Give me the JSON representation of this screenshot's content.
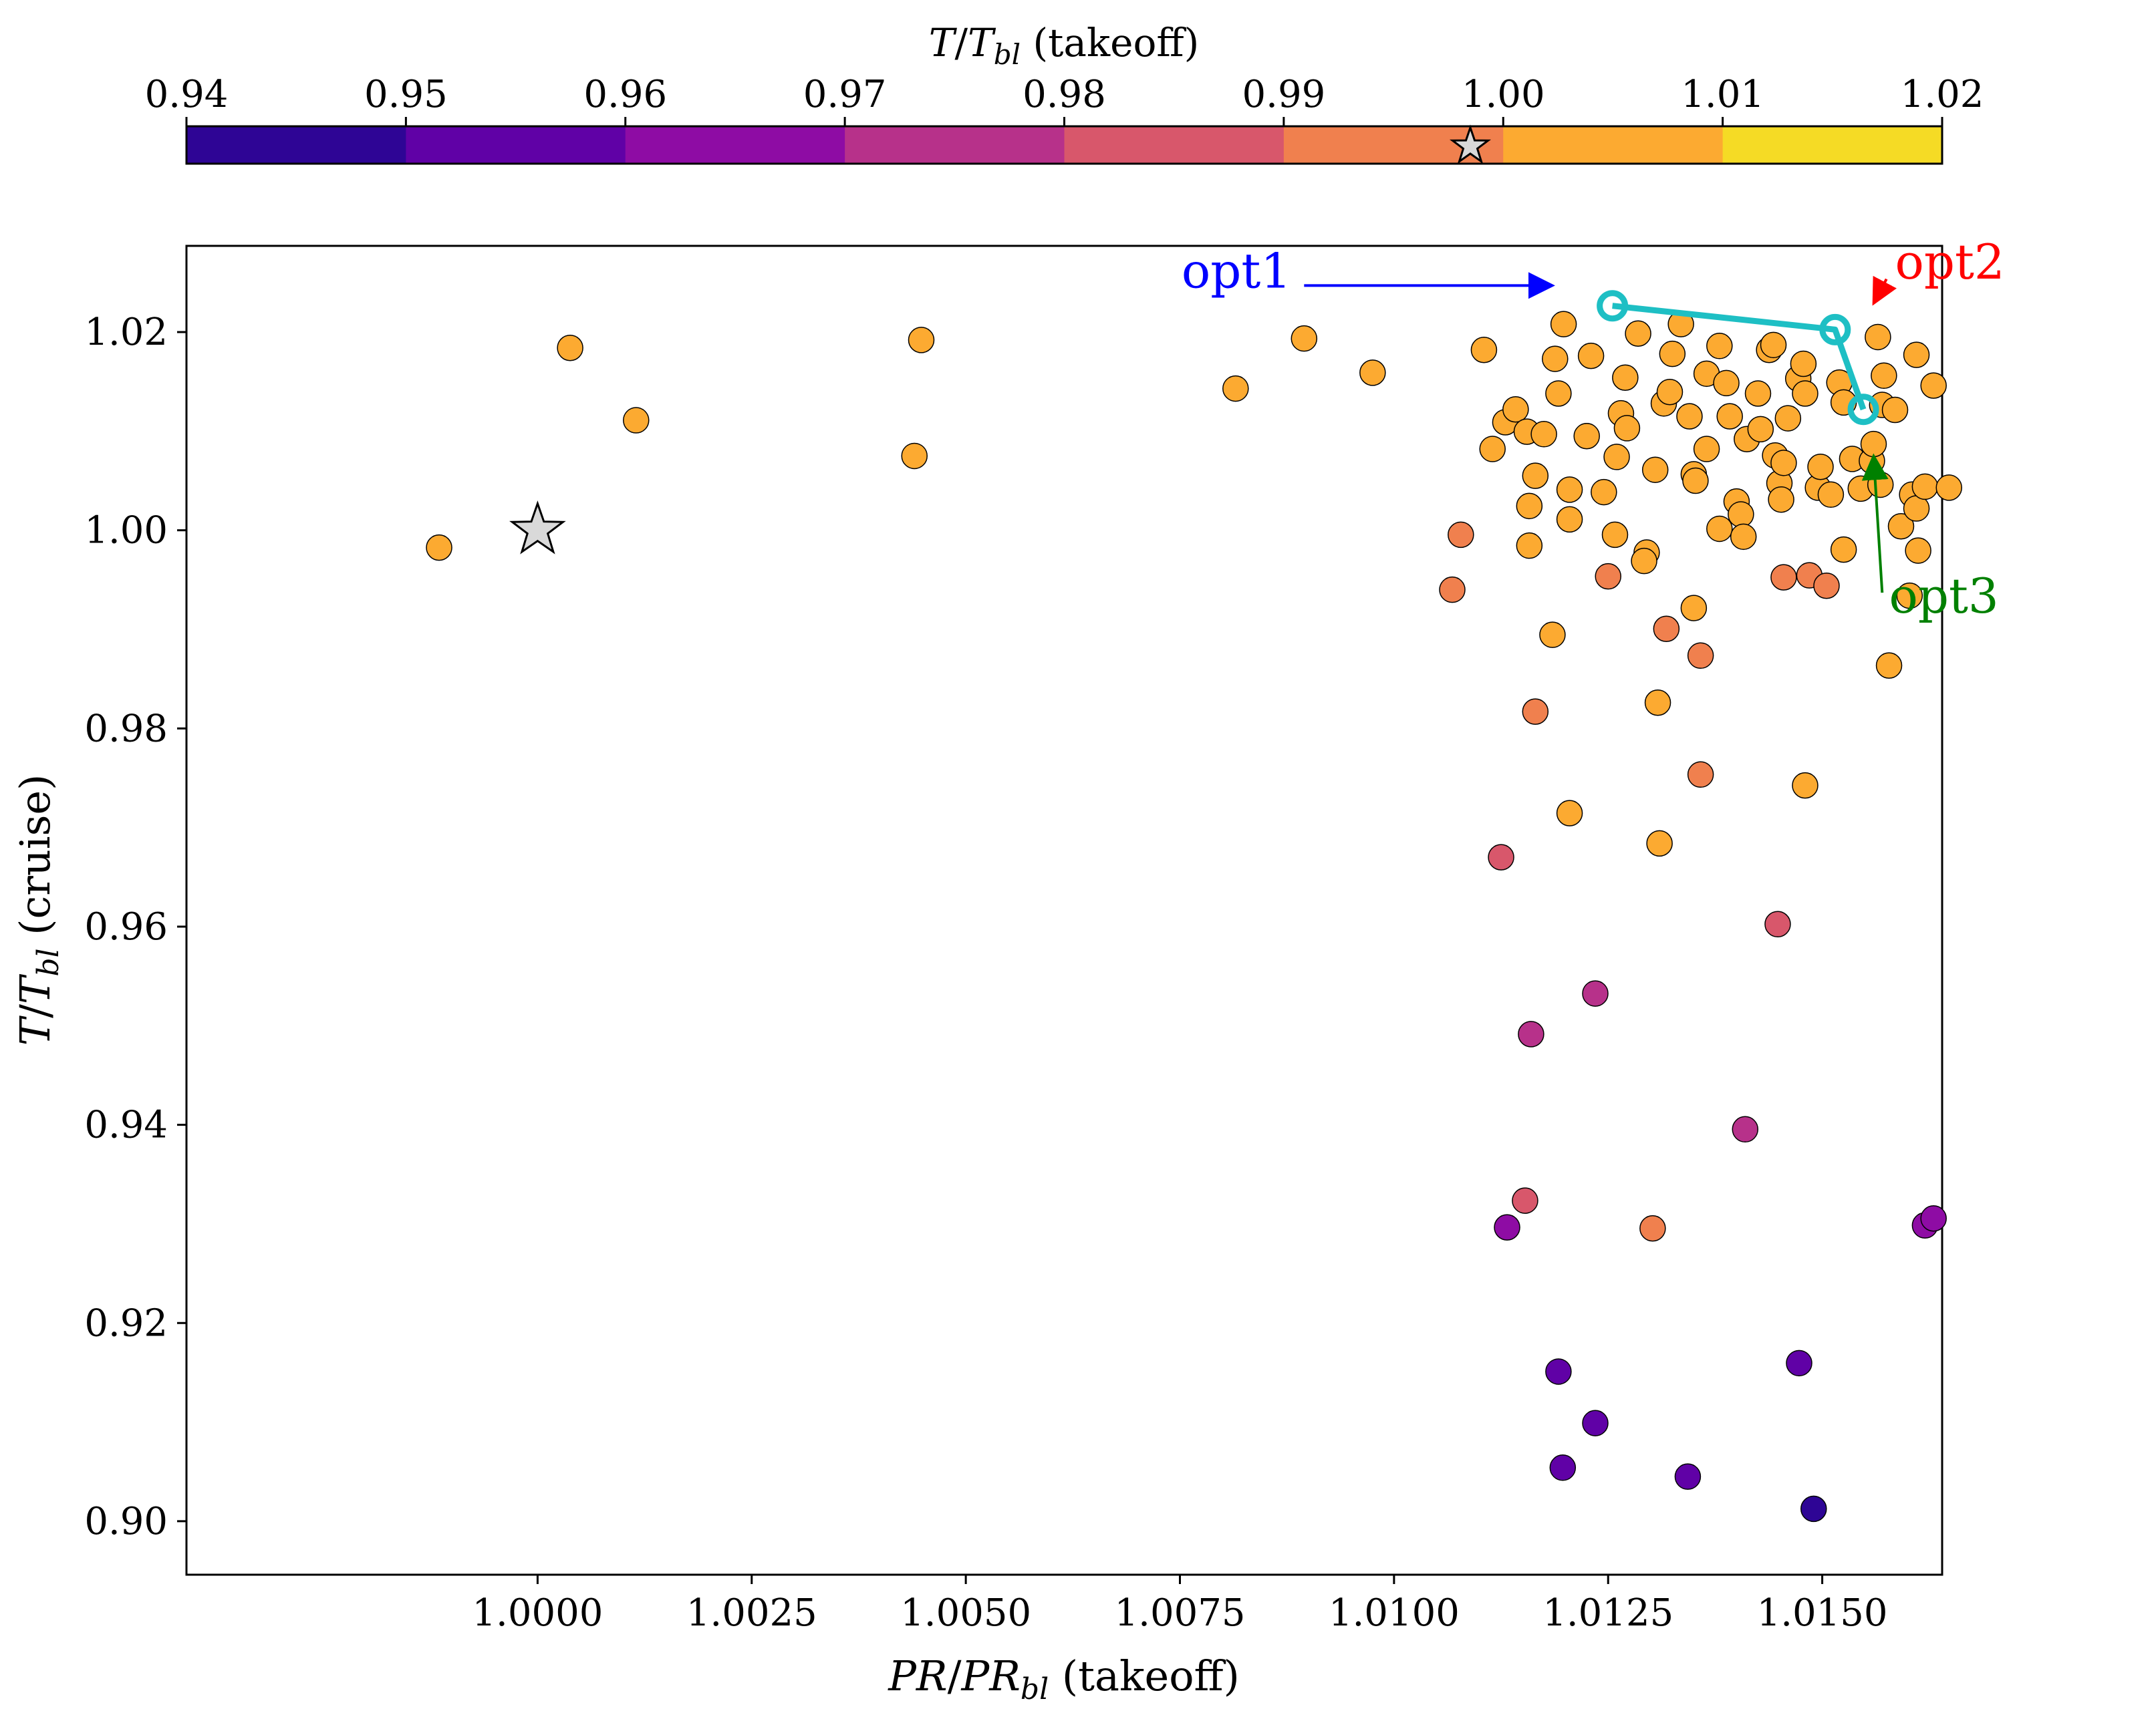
{
  "chart_data": {
    "type": "scatter",
    "xlabel": "PR/PR_bl (takeoff)",
    "ylabel": "T/T_bl (cruise)",
    "xlim": [
      0.9959,
      1.0164
    ],
    "ylim": [
      0.8946,
      1.0287
    ],
    "xticks": [
      1.0,
      1.0025,
      1.005,
      1.0075,
      1.01,
      1.0125,
      1.015
    ],
    "xtick_labels": [
      "1.0000",
      "1.0025",
      "1.0050",
      "1.0075",
      "1.0100",
      "1.0125",
      "1.0150"
    ],
    "yticks": [
      0.9,
      0.92,
      0.94,
      0.96,
      0.98,
      1.0,
      1.02
    ],
    "ytick_labels": [
      "0.90",
      "0.92",
      "0.94",
      "0.96",
      "0.98",
      "1.00",
      "1.02"
    ],
    "colorbar": {
      "label": "T/T_bl (takeoff)",
      "range": [
        0.94,
        1.02
      ],
      "ticks": [
        0.94,
        0.95,
        0.96,
        0.97,
        0.98,
        0.99,
        1.0,
        1.01,
        1.02
      ],
      "tick_labels": [
        "0.94",
        "0.95",
        "0.96",
        "0.97",
        "0.98",
        "0.99",
        "1.00",
        "1.01",
        "1.02"
      ],
      "colors": [
        "#2e0595",
        "#6001a6",
        "#8e0ca4",
        "#b7318a",
        "#d8576b",
        "#f0804e",
        "#fcaa31",
        "#f5db25"
      ],
      "baseline_marker_value": 0.9985
    },
    "baseline": {
      "x": 1.0,
      "y": 1.0,
      "marker": "star",
      "color": "#d9d9d9"
    },
    "pareto_front": {
      "color": "#1ebfc4",
      "points": [
        [
          1.01255,
          1.02265
        ],
        [
          1.01515,
          1.02025
        ],
        [
          1.01548,
          1.0122
        ]
      ]
    },
    "annotations": [
      {
        "label": "opt1",
        "color": "#0000ff",
        "text_at": [
          1.0088,
          1.0245
        ],
        "arrow_from": [
          1.00895,
          1.0247
        ],
        "arrow_to": [
          1.01185,
          1.0247
        ]
      },
      {
        "label": "opt2",
        "color": "#ff0000",
        "text_at": [
          1.01585,
          1.0254
        ],
        "arrow_from": [
          1.01575,
          1.02535
        ],
        "arrow_to": [
          1.0156,
          1.0229
        ]
      },
      {
        "label": "opt3",
        "color": "#008000",
        "text_at": [
          1.01578,
          0.9917
        ],
        "arrow_from": [
          1.0157,
          0.9937
        ],
        "arrow_to": [
          1.0156,
          1.0075
        ]
      }
    ],
    "series": [
      {
        "name": "designs",
        "points": [
          [
            0.99885,
            0.99825,
            1.005
          ],
          [
            1.00038,
            1.0184,
            1.005
          ],
          [
            1.00115,
            1.0111,
            1.005
          ],
          [
            1.0044,
            1.0075,
            1.005
          ],
          [
            1.00448,
            1.0192,
            1.005
          ],
          [
            1.00815,
            1.0143,
            1.005
          ],
          [
            1.00895,
            1.01935,
            1.005
          ],
          [
            1.00975,
            1.0159,
            1.005
          ],
          [
            1.01068,
            0.994,
            0.995
          ],
          [
            1.01078,
            0.99955,
            0.995
          ],
          [
            1.01105,
            1.0182,
            1.005
          ],
          [
            1.01115,
            1.0082,
            1.005
          ],
          [
            1.0113,
            1.0109,
            1.005
          ],
          [
            1.01142,
            1.0122,
            1.005
          ],
          [
            1.01155,
            1.00995,
            1.005
          ],
          [
            1.01158,
            1.00245,
            1.005
          ],
          [
            1.01158,
            0.99845,
            1.005
          ],
          [
            1.01165,
            1.0055,
            1.005
          ],
          [
            1.01165,
            0.9817,
            0.995
          ],
          [
            1.01175,
            1.0097,
            1.005
          ],
          [
            1.01185,
            0.98945,
            1.005
          ],
          [
            1.01188,
            1.0173,
            1.005
          ],
          [
            1.01192,
            1.0138,
            1.005
          ],
          [
            1.01198,
            1.0208,
            1.005
          ],
          [
            1.01205,
            1.0041,
            1.005
          ],
          [
            1.01205,
            1.0011,
            1.005
          ],
          [
            1.01205,
            0.97145,
            1.005
          ],
          [
            1.01225,
            1.0095,
            1.005
          ],
          [
            1.0123,
            1.0176,
            1.005
          ],
          [
            1.0125,
            0.99535,
            0.995
          ],
          [
            1.01245,
            1.00385,
            1.005
          ],
          [
            1.01258,
            0.99955,
            1.005
          ],
          [
            1.0126,
            1.0074,
            1.005
          ],
          [
            1.01265,
            1.0118,
            1.005
          ],
          [
            1.0127,
            1.0154,
            1.005
          ],
          [
            1.01272,
            1.0103,
            1.005
          ],
          [
            1.01285,
            1.01985,
            1.005
          ],
          [
            1.01295,
            0.99775,
            1.005
          ],
          [
            1.01292,
            0.9969,
            1.005
          ],
          [
            1.01305,
            1.0061,
            1.005
          ],
          [
            1.01308,
            0.9826,
            1.005
          ],
          [
            1.0131,
            0.9684,
            1.005
          ],
          [
            1.01315,
            1.0128,
            1.005
          ],
          [
            1.01322,
            1.01395,
            1.005
          ],
          [
            1.01325,
            1.0178,
            1.005
          ],
          [
            1.01318,
            0.99005,
            0.995
          ],
          [
            1.01335,
            1.0208,
            1.005
          ],
          [
            1.01345,
            1.0115,
            1.005
          ],
          [
            1.0135,
            1.00565,
            1.005
          ],
          [
            1.0135,
            0.99215,
            1.005
          ],
          [
            1.01352,
            1.005,
            1.005
          ],
          [
            1.01358,
            0.97535,
            0.995
          ],
          [
            1.01358,
            0.98735,
            0.995
          ],
          [
            1.01365,
            1.0158,
            1.005
          ],
          [
            1.01365,
            1.0082,
            1.005
          ],
          [
            1.0138,
            1.00015,
            1.005
          ],
          [
            1.0138,
            1.0186,
            1.005
          ],
          [
            1.01388,
            1.01485,
            1.005
          ],
          [
            1.01392,
            1.0115,
            1.005
          ],
          [
            1.014,
            1.0029,
            1.005
          ],
          [
            1.01405,
            1.0016,
            1.005
          ],
          [
            1.01408,
            0.99935,
            1.005
          ],
          [
            1.01412,
            1.0092,
            1.005
          ],
          [
            1.01425,
            1.0138,
            1.005
          ],
          [
            1.01428,
            1.0102,
            1.005
          ],
          [
            1.01438,
            1.0182,
            1.005
          ],
          [
            1.01443,
            1.0187,
            1.005
          ],
          [
            1.01445,
            1.00755,
            1.005
          ],
          [
            1.0145,
            1.00475,
            1.005
          ],
          [
            1.01452,
            1.0031,
            1.005
          ],
          [
            1.01455,
            1.0068,
            1.005
          ],
          [
            1.01455,
            0.99525,
            0.995
          ],
          [
            1.0146,
            1.0113,
            1.005
          ],
          [
            1.01472,
            1.0153,
            1.005
          ],
          [
            1.01478,
            1.0168,
            1.005
          ],
          [
            1.0148,
            1.0138,
            1.005
          ],
          [
            1.0148,
            0.97425,
            1.005
          ],
          [
            1.01485,
            0.99545,
            0.995
          ],
          [
            1.01495,
            1.0043,
            1.005
          ],
          [
            1.01498,
            1.0064,
            1.005
          ],
          [
            1.01505,
            0.9944,
            0.995
          ],
          [
            1.0151,
            1.0036,
            1.005
          ],
          [
            1.0152,
            1.0149,
            1.005
          ],
          [
            1.01525,
            1.0129,
            1.005
          ],
          [
            1.01525,
            0.99805,
            1.005
          ],
          [
            1.01535,
            1.0072,
            1.005
          ],
          [
            1.01545,
            1.0042,
            1.005
          ],
          [
            1.01558,
            1.007,
            1.005
          ],
          [
            1.0156,
            1.0087,
            1.005
          ],
          [
            1.01565,
            1.0195,
            1.005
          ],
          [
            1.01568,
            1.0046,
            1.005
          ],
          [
            1.0157,
            1.01265,
            1.005
          ],
          [
            1.01572,
            1.0156,
            1.005
          ],
          [
            1.01578,
            0.98635,
            1.005
          ],
          [
            1.01585,
            1.01215,
            1.005
          ],
          [
            1.01592,
            1.0004,
            1.005
          ],
          [
            1.01602,
            0.9934,
            1.005
          ],
          [
            1.01605,
            1.0036,
            1.005
          ],
          [
            1.0161,
            1.0022,
            1.005
          ],
          [
            1.01612,
            0.99795,
            1.005
          ],
          [
            1.0162,
            1.0044,
            1.005
          ],
          [
            1.0161,
            1.0177,
            1.005
          ],
          [
            1.0163,
            1.0146,
            1.005
          ],
          [
            1.01648,
            1.0043,
            1.005
          ],
          [
            1.01448,
            0.96025,
            0.985
          ],
          [
            1.01235,
            0.95325,
            0.975
          ],
          [
            1.01125,
            0.967,
            0.985
          ],
          [
            1.0116,
            0.94915,
            0.975
          ],
          [
            1.01153,
            0.93235,
            0.985
          ],
          [
            1.01132,
            0.92965,
            0.965
          ],
          [
            1.01302,
            0.92955,
            0.995
          ],
          [
            1.0141,
            0.93955,
            0.975
          ],
          [
            1.0162,
            0.92985,
            0.965
          ],
          [
            1.0163,
            0.93055,
            0.965
          ],
          [
            1.01192,
            0.9151,
            0.955
          ],
          [
            1.01235,
            0.9099,
            0.955
          ],
          [
            1.01197,
            0.9054,
            0.955
          ],
          [
            1.01343,
            0.9045,
            0.955
          ],
          [
            1.01473,
            0.91595,
            0.955
          ],
          [
            1.0149,
            0.90125,
            0.945
          ]
        ]
      }
    ]
  }
}
